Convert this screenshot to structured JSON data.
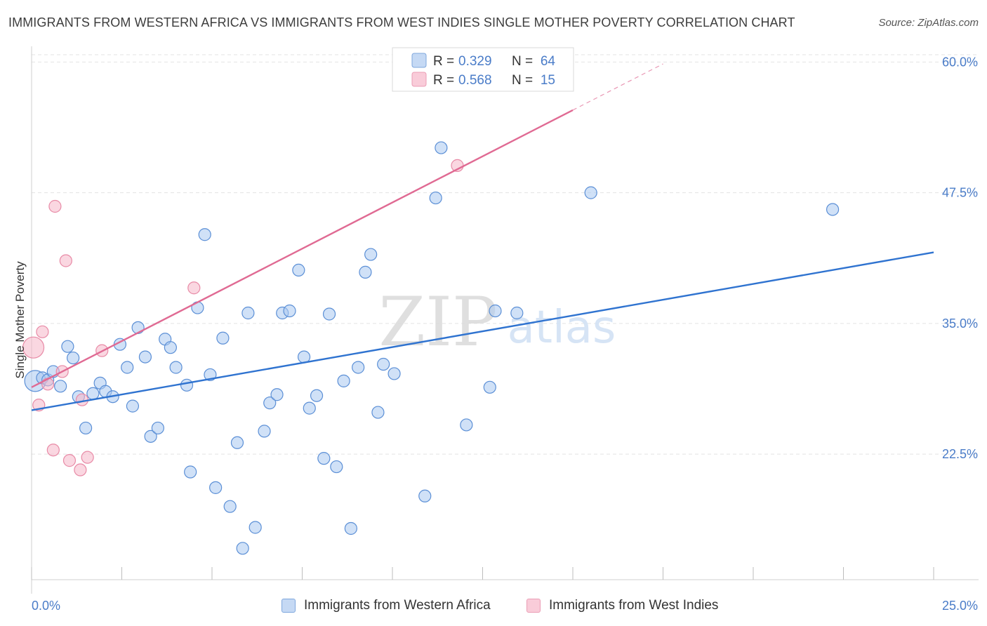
{
  "title": "IMMIGRANTS FROM WESTERN AFRICA VS IMMIGRANTS FROM WEST INDIES SINGLE MOTHER POVERTY CORRELATION CHART",
  "source": "Source: ZipAtlas.com",
  "watermark": {
    "zip": "ZIP",
    "atlas": "atlas"
  },
  "colors": {
    "blue_fill": "#a9c8f0",
    "blue_stroke": "#5b8fd6",
    "blue_line": "#2f73d0",
    "pink_fill": "#f6b6c8",
    "pink_stroke": "#e88aa6",
    "pink_line": "#e06a93",
    "tick_label": "#4a7cc8",
    "grid": "#e3e3e3"
  },
  "chart_data": {
    "type": "scatter",
    "title": "IMMIGRANTS FROM WESTERN AFRICA VS IMMIGRANTS FROM WEST INDIES SINGLE MOTHER POVERTY CORRELATION CHART",
    "xlabel": "",
    "ylabel": "Single Mother Poverty",
    "xlim": [
      0,
      25
    ],
    "ylim": [
      10.5,
      61.5
    ],
    "x_tick_labels": {
      "left": "0.0%",
      "right": "25.0%"
    },
    "y_ticks": [
      22.5,
      35.0,
      47.5,
      60.0
    ],
    "y_tick_labels": [
      "22.5%",
      "35.0%",
      "47.5%",
      "60.0%"
    ],
    "legend_stats": [
      {
        "swatch": "blue",
        "r_label": "R =",
        "r_value": "0.329",
        "n_label": "N =",
        "n_value": "64"
      },
      {
        "swatch": "pink",
        "r_label": "R =",
        "r_value": "0.568",
        "n_label": "N =",
        "n_value": "15"
      }
    ],
    "series": [
      {
        "name": "Immigrants from Western Africa",
        "color": "blue",
        "trend": {
          "x0": 0,
          "y0": 26.7,
          "x1": 25,
          "y1": 41.8
        },
        "points": [
          {
            "x": 0.1,
            "y": 29.5,
            "big": true
          },
          {
            "x": 0.3,
            "y": 29.8
          },
          {
            "x": 0.45,
            "y": 29.6
          },
          {
            "x": 0.6,
            "y": 30.4
          },
          {
            "x": 0.8,
            "y": 29.0
          },
          {
            "x": 1.0,
            "y": 32.8
          },
          {
            "x": 1.15,
            "y": 31.7
          },
          {
            "x": 1.3,
            "y": 28.0
          },
          {
            "x": 1.5,
            "y": 25.0
          },
          {
            "x": 1.7,
            "y": 28.3
          },
          {
            "x": 1.9,
            "y": 29.3
          },
          {
            "x": 2.05,
            "y": 28.5
          },
          {
            "x": 2.25,
            "y": 28.0
          },
          {
            "x": 2.45,
            "y": 33.0
          },
          {
            "x": 2.65,
            "y": 30.8
          },
          {
            "x": 2.8,
            "y": 27.1
          },
          {
            "x": 2.95,
            "y": 34.6
          },
          {
            "x": 3.15,
            "y": 31.8
          },
          {
            "x": 3.3,
            "y": 24.2
          },
          {
            "x": 3.5,
            "y": 25.0
          },
          {
            "x": 3.7,
            "y": 33.5
          },
          {
            "x": 3.85,
            "y": 32.7
          },
          {
            "x": 4.0,
            "y": 30.8
          },
          {
            "x": 4.3,
            "y": 29.1
          },
          {
            "x": 4.4,
            "y": 20.8
          },
          {
            "x": 4.6,
            "y": 36.5
          },
          {
            "x": 4.8,
            "y": 43.5
          },
          {
            "x": 4.95,
            "y": 30.1
          },
          {
            "x": 5.1,
            "y": 19.3
          },
          {
            "x": 5.3,
            "y": 33.6
          },
          {
            "x": 5.5,
            "y": 17.5
          },
          {
            "x": 5.7,
            "y": 23.6
          },
          {
            "x": 5.85,
            "y": 13.5
          },
          {
            "x": 6.0,
            "y": 36.0
          },
          {
            "x": 6.2,
            "y": 15.5
          },
          {
            "x": 6.45,
            "y": 24.7
          },
          {
            "x": 6.6,
            "y": 27.4
          },
          {
            "x": 6.8,
            "y": 28.2
          },
          {
            "x": 6.95,
            "y": 36.0
          },
          {
            "x": 7.15,
            "y": 36.2
          },
          {
            "x": 7.4,
            "y": 40.1
          },
          {
            "x": 7.55,
            "y": 31.8
          },
          {
            "x": 7.7,
            "y": 26.9
          },
          {
            "x": 7.9,
            "y": 28.1
          },
          {
            "x": 8.1,
            "y": 22.1
          },
          {
            "x": 8.25,
            "y": 35.9
          },
          {
            "x": 8.45,
            "y": 21.3
          },
          {
            "x": 8.65,
            "y": 29.5
          },
          {
            "x": 8.85,
            "y": 15.4
          },
          {
            "x": 9.05,
            "y": 30.8
          },
          {
            "x": 9.25,
            "y": 39.9
          },
          {
            "x": 9.4,
            "y": 41.6
          },
          {
            "x": 9.6,
            "y": 26.5
          },
          {
            "x": 9.75,
            "y": 31.1
          },
          {
            "x": 10.05,
            "y": 30.2
          },
          {
            "x": 10.9,
            "y": 18.5
          },
          {
            "x": 11.2,
            "y": 47.0
          },
          {
            "x": 11.35,
            "y": 51.8
          },
          {
            "x": 12.05,
            "y": 25.3
          },
          {
            "x": 12.7,
            "y": 28.9
          },
          {
            "x": 12.85,
            "y": 36.2
          },
          {
            "x": 13.45,
            "y": 36.0
          },
          {
            "x": 15.5,
            "y": 47.5
          },
          {
            "x": 22.2,
            "y": 45.9
          }
        ]
      },
      {
        "name": "Immigrants from West Indies",
        "color": "pink",
        "trend": {
          "x0": 0,
          "y0": 28.9,
          "x1": 15,
          "y1": 55.4,
          "dash_to_x": 17.5
        },
        "points": [
          {
            "x": 0.05,
            "y": 32.7,
            "big": true
          },
          {
            "x": 0.2,
            "y": 27.2
          },
          {
            "x": 0.3,
            "y": 34.2
          },
          {
            "x": 0.45,
            "y": 29.2
          },
          {
            "x": 0.6,
            "y": 22.9
          },
          {
            "x": 0.65,
            "y": 46.2
          },
          {
            "x": 0.85,
            "y": 30.4
          },
          {
            "x": 0.95,
            "y": 41.0
          },
          {
            "x": 1.05,
            "y": 21.9
          },
          {
            "x": 1.35,
            "y": 21.0
          },
          {
            "x": 1.4,
            "y": 27.7
          },
          {
            "x": 1.55,
            "y": 22.2
          },
          {
            "x": 1.95,
            "y": 32.4
          },
          {
            "x": 4.5,
            "y": 38.4
          },
          {
            "x": 11.8,
            "y": 50.1
          }
        ]
      }
    ]
  }
}
